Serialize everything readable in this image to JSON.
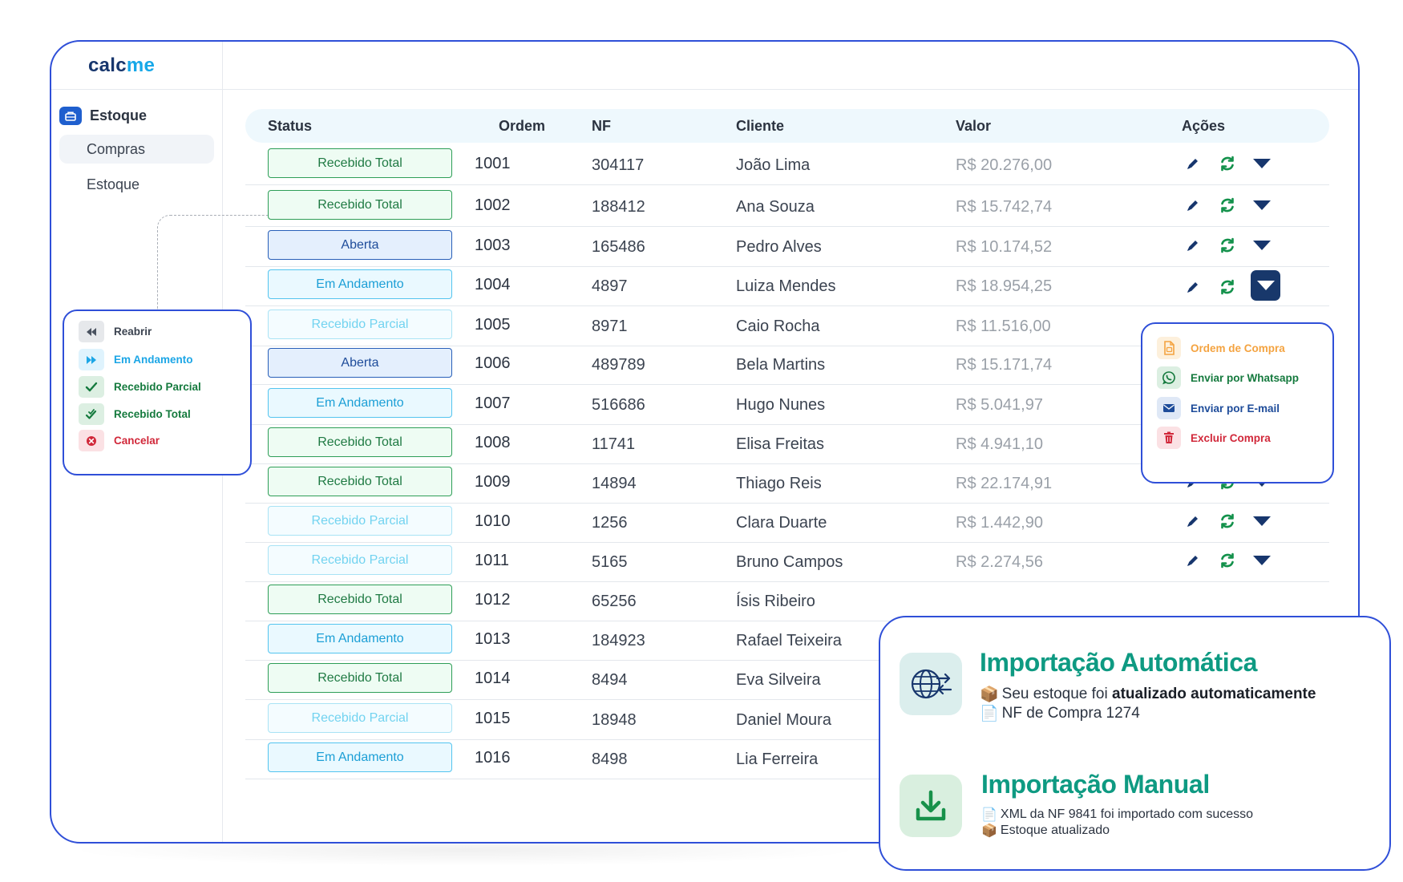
{
  "app": {
    "logo_part1": "calc",
    "logo_part2": "me"
  },
  "sidebar": {
    "section_label": "Estoque",
    "section_icon": "box-icon",
    "items": [
      {
        "label": "Compras",
        "active": true
      },
      {
        "label": "Estoque",
        "active": false
      }
    ]
  },
  "table": {
    "headers": {
      "status": "Status",
      "ordem": "Ordem",
      "nf": "NF",
      "cliente": "Cliente",
      "valor": "Valor",
      "acoes": "Ações"
    },
    "rows": [
      {
        "status": "Recebido Total",
        "kind": "total",
        "ordem": "1001",
        "nf": "304117",
        "cliente": "João Lima",
        "valor": "R$ 20.276,00"
      },
      {
        "status": "Recebido Total",
        "kind": "total",
        "ordem": "1002",
        "nf": "188412",
        "cliente": "Ana Souza",
        "valor": "R$ 15.742,74"
      },
      {
        "status": "Aberta",
        "kind": "aberta",
        "ordem": "1003",
        "nf": "165486",
        "cliente": "Pedro Alves",
        "valor": "R$ 10.174,52"
      },
      {
        "status": "Em Andamento",
        "kind": "andamento",
        "ordem": "1004",
        "nf": "4897",
        "cliente": "Luiza Mendes",
        "valor": "R$ 18.954,25"
      },
      {
        "status": "Recebido Parcial",
        "kind": "parcial",
        "ordem": "1005",
        "nf": "8971",
        "cliente": "Caio Rocha",
        "valor": "R$ 11.516,00"
      },
      {
        "status": "Aberta",
        "kind": "aberta",
        "ordem": "1006",
        "nf": "489789",
        "cliente": "Bela Martins",
        "valor": "R$ 15.171,74"
      },
      {
        "status": "Em Andamento",
        "kind": "andamento",
        "ordem": "1007",
        "nf": "516686",
        "cliente": "Hugo Nunes",
        "valor": "R$ 5.041,97"
      },
      {
        "status": "Recebido Total",
        "kind": "total",
        "ordem": "1008",
        "nf": "11741",
        "cliente": "Elisa Freitas",
        "valor": "R$ 4.941,10"
      },
      {
        "status": "Recebido Total",
        "kind": "total",
        "ordem": "1009",
        "nf": "14894",
        "cliente": "Thiago Reis",
        "valor": "R$ 22.174,91"
      },
      {
        "status": "Recebido Parcial",
        "kind": "parcial",
        "ordem": "1010",
        "nf": "1256",
        "cliente": "Clara Duarte",
        "valor": "R$ 1.442,90"
      },
      {
        "status": "Recebido Parcial",
        "kind": "parcial",
        "ordem": "1011",
        "nf": "5165",
        "cliente": "Bruno Campos",
        "valor": "R$ 2.274,56"
      },
      {
        "status": "Recebido Total",
        "kind": "total",
        "ordem": "1012",
        "nf": "65256",
        "cliente": "Ísis Ribeiro",
        "valor": ""
      },
      {
        "status": "Em Andamento",
        "kind": "andamento",
        "ordem": "1013",
        "nf": "184923",
        "cliente": "Rafael Teixeira",
        "valor": ""
      },
      {
        "status": "Recebido Total",
        "kind": "total",
        "ordem": "1014",
        "nf": "8494",
        "cliente": "Eva Silveira",
        "valor": ""
      },
      {
        "status": "Recebido Parcial",
        "kind": "parcial",
        "ordem": "1015",
        "nf": "18948",
        "cliente": "Daniel Moura",
        "valor": ""
      },
      {
        "status": "Em Andamento",
        "kind": "andamento",
        "ordem": "1016",
        "nf": "8498",
        "cliente": "Lia Ferreira",
        "valor": ""
      }
    ],
    "row_actions": [
      "edit-icon",
      "refresh-icon",
      "caret-down-icon"
    ],
    "active_menu_row": "1004"
  },
  "status_menu": {
    "items": [
      {
        "label": "Reabrir",
        "icon": "rewind-icon",
        "color": "#3b4350",
        "bg": "#e6e8eb"
      },
      {
        "label": "Em Andamento",
        "icon": "fast-forward-icon",
        "color": "#1ca6e6",
        "bg": "#dff3fd"
      },
      {
        "label": "Recebido Parcial",
        "icon": "check-icon",
        "color": "#157a3e",
        "bg": "#dcefe2"
      },
      {
        "label": "Recebido Total",
        "icon": "double-check-icon",
        "color": "#157a3e",
        "bg": "#dcefe2"
      },
      {
        "label": "Cancelar",
        "icon": "cancel-icon",
        "color": "#d1283a",
        "bg": "#fbe1e4"
      }
    ]
  },
  "actions_menu": {
    "items": [
      {
        "label": "Ordem de Compra",
        "icon": "document-icon",
        "color": "#f4a340",
        "bg": "#fdf0dc"
      },
      {
        "label": "Enviar por Whatsapp",
        "icon": "whatsapp-icon",
        "color": "#157a3e",
        "bg": "#dcefe2"
      },
      {
        "label": "Enviar por E-mail",
        "icon": "mail-icon",
        "color": "#1e4c9a",
        "bg": "#dfe8f6"
      },
      {
        "label": "Excluir Compra",
        "icon": "trash-icon",
        "color": "#d1283a",
        "bg": "#fbe1e4"
      }
    ]
  },
  "imports": {
    "auto": {
      "title": "Importação Automática",
      "line1_prefix": "Seu estoque foi ",
      "line1_bold": "atualizado automaticamente",
      "line2": "NF de Compra 1274",
      "icon": "globe-import-icon",
      "line1_glyph": "📦",
      "line2_glyph": "📄"
    },
    "manual": {
      "title": "Importação Manual",
      "line1": "XML da NF 9841 foi importado com sucesso",
      "line2": "Estoque atualizado",
      "icon": "download-icon",
      "line1_glyph": "📄",
      "line2_glyph": "📦"
    }
  },
  "colors": {
    "accent_border": "#2f4fd8",
    "navy": "#18386b",
    "teal_title": "#0e9a82"
  }
}
